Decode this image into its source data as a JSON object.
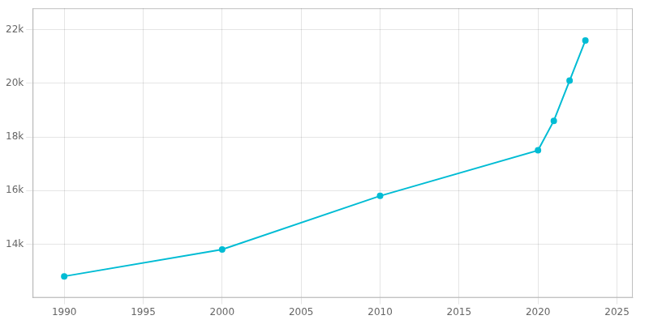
{
  "chart_data": {
    "type": "line",
    "x": [
      1990,
      2000,
      2010,
      2020,
      2021,
      2022,
      2023
    ],
    "values": [
      12800,
      13800,
      15800,
      17500,
      18600,
      20100,
      21600
    ],
    "color": "#00bcd4",
    "marker": "circle",
    "xlim": [
      1988,
      2026
    ],
    "xticks": [
      1990,
      1995,
      2000,
      2005,
      2010,
      2015,
      2020,
      2025
    ],
    "ylim": [
      12000,
      22800
    ],
    "yticks": [
      {
        "value": 14000,
        "label": "14k"
      },
      {
        "value": 16000,
        "label": "16k"
      },
      {
        "value": 18000,
        "label": "18k"
      },
      {
        "value": 20000,
        "label": "20k"
      },
      {
        "value": 22000,
        "label": "22k"
      }
    ],
    "grid": true
  }
}
